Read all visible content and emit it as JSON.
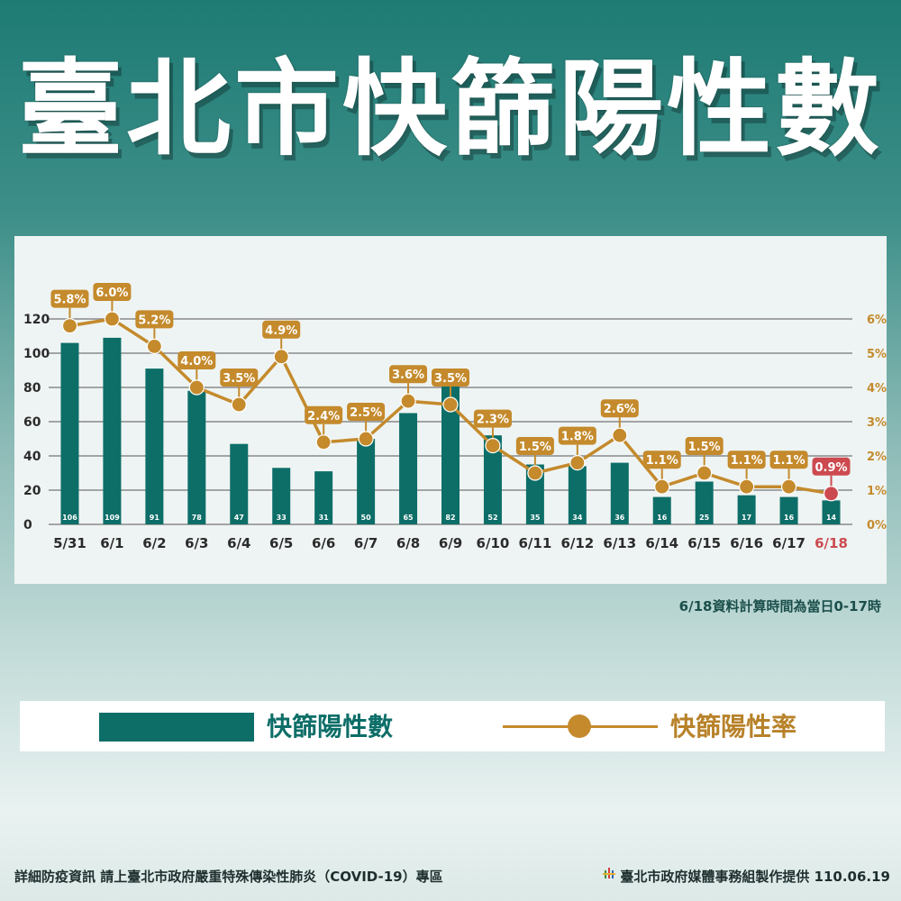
{
  "title": "臺北市快篩陽性數",
  "note": "6/18資料計算時間為當日0-17時",
  "legend": {
    "bar_label": "快篩陽性數",
    "line_label": "快篩陽性率"
  },
  "footer": {
    "source": "詳細防疫資訊 請上臺北市政府嚴重特殊傳染性肺炎（COVID-19）專區",
    "logo_text": "TAIPEI",
    "credit": "臺北市政府媒體事務組製作提供 110.06.19"
  },
  "colors": {
    "bar": "#0d6e68",
    "line": "#c48a2c",
    "highlight": "#cc4a4f",
    "grid": "#8a8a8a"
  },
  "chart_data": {
    "type": "bar",
    "categories": [
      "5/31",
      "6/1",
      "6/2",
      "6/3",
      "6/4",
      "6/5",
      "6/6",
      "6/7",
      "6/8",
      "6/9",
      "6/10",
      "6/11",
      "6/12",
      "6/13",
      "6/14",
      "6/15",
      "6/16",
      "6/17",
      "6/18"
    ],
    "highlight_category": "6/18",
    "series": [
      {
        "name": "快篩陽性數",
        "type": "bar",
        "axis": "left",
        "values": [
          106,
          109,
          91,
          78,
          47,
          33,
          31,
          50,
          65,
          82,
          52,
          35,
          34,
          36,
          16,
          25,
          17,
          16,
          14
        ]
      },
      {
        "name": "快篩陽性率",
        "type": "line",
        "axis": "right",
        "values": [
          5.8,
          6.0,
          5.2,
          4.0,
          3.5,
          4.9,
          2.4,
          2.5,
          3.6,
          3.5,
          2.3,
          1.5,
          1.8,
          2.6,
          1.1,
          1.5,
          1.1,
          1.1,
          0.9
        ],
        "labels": [
          "5.8%",
          "6.0%",
          "5.2%",
          "4.0%",
          "3.5%",
          "4.9%",
          "2.4%",
          "2.5%",
          "3.6%",
          "3.5%",
          "2.3%",
          "1.5%",
          "1.8%",
          "2.6%",
          "1.1%",
          "1.5%",
          "1.1%",
          "1.1%",
          "0.9%"
        ]
      }
    ],
    "y_left": {
      "ticks": [
        0,
        20,
        40,
        60,
        80,
        100,
        120
      ],
      "range": [
        0,
        120
      ]
    },
    "y_right": {
      "ticks": [
        "0%",
        "1%",
        "2%",
        "3%",
        "4%",
        "5%",
        "6%"
      ],
      "range": [
        0,
        6
      ]
    },
    "grid": true
  }
}
